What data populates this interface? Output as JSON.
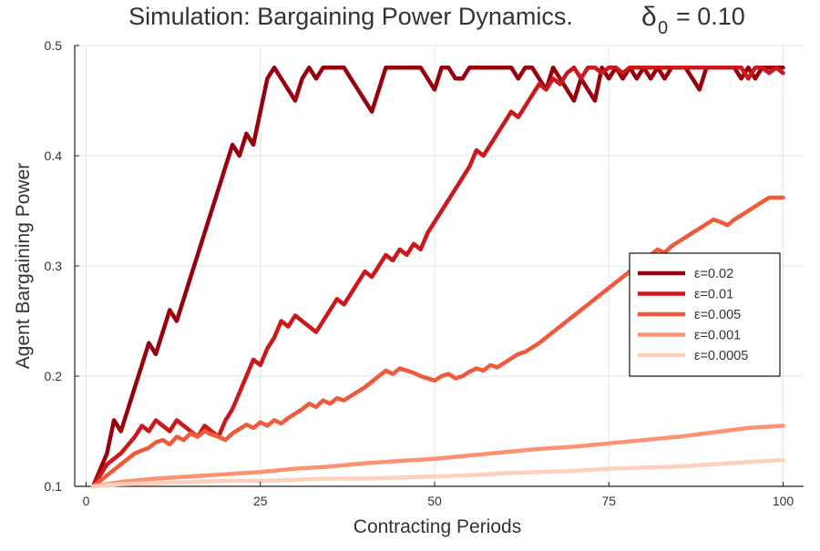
{
  "chart_data": {
    "type": "line",
    "title": "Simulation: Bargaining Power Dynamics.",
    "title_param": {
      "symbol": "δ",
      "subscript": "0",
      "value": "= 0.10"
    },
    "xlabel": "Contracting Periods",
    "ylabel": "Agent Bargaining Power",
    "xlim": [
      0,
      100
    ],
    "ylim": [
      0.1,
      0.5
    ],
    "xticks": [
      0,
      25,
      50,
      75,
      100
    ],
    "xtick_labels": [
      "0",
      "25",
      "50",
      "75",
      "100"
    ],
    "yticks": [
      0.1,
      0.2,
      0.3,
      0.4,
      0.5
    ],
    "ytick_labels": [
      "0.1",
      "0.2",
      "0.3",
      "0.4",
      "0.5"
    ],
    "grid": true,
    "legend_position": "right",
    "series": [
      {
        "name": "ε=0.02",
        "color": "#99000d",
        "x": [
          1,
          3,
          4,
          5,
          6,
          7,
          8,
          9,
          10,
          11,
          12,
          13,
          14,
          15,
          16,
          17,
          18,
          19,
          20,
          21,
          22,
          23,
          24,
          25,
          26,
          27,
          28,
          29,
          30,
          31,
          32,
          33,
          34,
          35,
          36,
          37,
          38,
          39,
          40,
          41,
          42,
          43,
          44,
          45,
          46,
          47,
          48,
          49,
          50,
          51,
          52,
          53,
          54,
          55,
          56,
          57,
          58,
          59,
          60,
          61,
          62,
          63,
          64,
          65,
          66,
          67,
          68,
          69,
          70,
          71,
          72,
          73,
          74,
          75,
          76,
          77,
          78,
          79,
          80,
          81,
          82,
          83,
          84,
          85,
          86,
          87,
          88,
          89,
          90,
          91,
          92,
          93,
          94,
          95,
          96,
          97,
          98,
          99,
          100
        ],
        "y": [
          0.1,
          0.13,
          0.16,
          0.15,
          0.17,
          0.19,
          0.21,
          0.23,
          0.22,
          0.24,
          0.26,
          0.25,
          0.27,
          0.29,
          0.31,
          0.33,
          0.35,
          0.37,
          0.39,
          0.41,
          0.4,
          0.42,
          0.41,
          0.44,
          0.47,
          0.48,
          0.47,
          0.46,
          0.45,
          0.47,
          0.48,
          0.47,
          0.48,
          0.48,
          0.48,
          0.48,
          0.47,
          0.46,
          0.45,
          0.44,
          0.46,
          0.48,
          0.48,
          0.48,
          0.48,
          0.48,
          0.48,
          0.47,
          0.46,
          0.48,
          0.48,
          0.47,
          0.47,
          0.48,
          0.48,
          0.48,
          0.48,
          0.48,
          0.48,
          0.48,
          0.47,
          0.48,
          0.48,
          0.47,
          0.46,
          0.48,
          0.47,
          0.46,
          0.45,
          0.47,
          0.46,
          0.45,
          0.48,
          0.47,
          0.48,
          0.47,
          0.48,
          0.47,
          0.48,
          0.47,
          0.48,
          0.47,
          0.48,
          0.48,
          0.48,
          0.47,
          0.46,
          0.48,
          0.48,
          0.48,
          0.48,
          0.48,
          0.47,
          0.48,
          0.47,
          0.48,
          0.48,
          0.48,
          0.48
        ]
      },
      {
        "name": "ε=0.01",
        "color": "#cb181d",
        "x": [
          1,
          3,
          5,
          7,
          8,
          9,
          10,
          11,
          12,
          13,
          14,
          15,
          16,
          17,
          18,
          19,
          20,
          21,
          22,
          23,
          24,
          25,
          26,
          27,
          28,
          29,
          30,
          31,
          32,
          33,
          34,
          35,
          36,
          37,
          38,
          39,
          40,
          41,
          42,
          43,
          44,
          45,
          46,
          47,
          48,
          49,
          50,
          51,
          52,
          53,
          54,
          55,
          56,
          57,
          58,
          59,
          60,
          61,
          62,
          63,
          64,
          65,
          66,
          67,
          68,
          69,
          70,
          71,
          72,
          73,
          74,
          75,
          76,
          77,
          78,
          79,
          80,
          81,
          82,
          83,
          84,
          85,
          86,
          87,
          88,
          89,
          90,
          91,
          92,
          93,
          94,
          95,
          96,
          97,
          98,
          99,
          100
        ],
        "y": [
          0.1,
          0.12,
          0.13,
          0.145,
          0.155,
          0.15,
          0.16,
          0.155,
          0.15,
          0.16,
          0.155,
          0.15,
          0.145,
          0.155,
          0.15,
          0.145,
          0.16,
          0.17,
          0.185,
          0.2,
          0.215,
          0.21,
          0.225,
          0.235,
          0.25,
          0.245,
          0.255,
          0.25,
          0.245,
          0.24,
          0.25,
          0.26,
          0.27,
          0.265,
          0.275,
          0.285,
          0.295,
          0.29,
          0.3,
          0.31,
          0.305,
          0.315,
          0.31,
          0.32,
          0.315,
          0.33,
          0.34,
          0.35,
          0.36,
          0.37,
          0.38,
          0.39,
          0.405,
          0.4,
          0.41,
          0.42,
          0.43,
          0.44,
          0.435,
          0.445,
          0.455,
          0.465,
          0.46,
          0.47,
          0.465,
          0.475,
          0.48,
          0.47,
          0.48,
          0.48,
          0.475,
          0.48,
          0.48,
          0.475,
          0.48,
          0.48,
          0.48,
          0.48,
          0.48,
          0.48,
          0.48,
          0.48,
          0.48,
          0.48,
          0.48,
          0.48,
          0.48,
          0.48,
          0.48,
          0.48,
          0.48,
          0.47,
          0.48,
          0.48,
          0.475,
          0.48,
          0.475
        ]
      },
      {
        "name": "ε=0.005",
        "color": "#ef5a3c",
        "x": [
          1,
          3,
          5,
          7,
          9,
          10,
          11,
          12,
          13,
          14,
          15,
          16,
          17,
          18,
          19,
          20,
          21,
          22,
          23,
          24,
          25,
          26,
          27,
          28,
          29,
          30,
          31,
          32,
          33,
          34,
          35,
          36,
          37,
          38,
          39,
          40,
          41,
          42,
          43,
          44,
          45,
          46,
          47,
          48,
          49,
          50,
          51,
          52,
          53,
          54,
          55,
          56,
          57,
          58,
          59,
          60,
          61,
          62,
          63,
          64,
          65,
          66,
          67,
          68,
          69,
          70,
          71,
          72,
          73,
          74,
          75,
          76,
          77,
          78,
          79,
          80,
          81,
          82,
          83,
          84,
          85,
          86,
          87,
          88,
          89,
          90,
          91,
          92,
          93,
          94,
          95,
          96,
          97,
          98,
          99,
          100
        ],
        "y": [
          0.1,
          0.11,
          0.12,
          0.13,
          0.135,
          0.14,
          0.142,
          0.138,
          0.145,
          0.142,
          0.148,
          0.145,
          0.15,
          0.147,
          0.145,
          0.142,
          0.148,
          0.152,
          0.156,
          0.153,
          0.158,
          0.155,
          0.16,
          0.157,
          0.162,
          0.166,
          0.17,
          0.175,
          0.172,
          0.178,
          0.175,
          0.18,
          0.178,
          0.182,
          0.186,
          0.19,
          0.195,
          0.2,
          0.205,
          0.202,
          0.207,
          0.205,
          0.203,
          0.2,
          0.198,
          0.196,
          0.2,
          0.202,
          0.198,
          0.2,
          0.204,
          0.207,
          0.205,
          0.21,
          0.208,
          0.212,
          0.216,
          0.22,
          0.222,
          0.226,
          0.23,
          0.235,
          0.24,
          0.245,
          0.25,
          0.255,
          0.26,
          0.265,
          0.27,
          0.275,
          0.28,
          0.285,
          0.29,
          0.295,
          0.3,
          0.305,
          0.31,
          0.315,
          0.312,
          0.318,
          0.322,
          0.326,
          0.33,
          0.334,
          0.338,
          0.342,
          0.34,
          0.337,
          0.342,
          0.346,
          0.35,
          0.354,
          0.358,
          0.362,
          0.362,
          0.362
        ]
      },
      {
        "name": "ε=0.001",
        "color": "#fc9272",
        "x": [
          1,
          5,
          10,
          15,
          20,
          25,
          30,
          35,
          40,
          45,
          50,
          55,
          60,
          65,
          70,
          75,
          80,
          85,
          90,
          95,
          100
        ],
        "y": [
          0.1,
          0.104,
          0.107,
          0.109,
          0.111,
          0.113,
          0.116,
          0.118,
          0.121,
          0.123,
          0.125,
          0.128,
          0.131,
          0.134,
          0.136,
          0.139,
          0.142,
          0.145,
          0.149,
          0.153,
          0.155
        ]
      },
      {
        "name": "ε=0.0005",
        "color": "#fdd0bc",
        "x": [
          1,
          5,
          10,
          15,
          20,
          25,
          30,
          35,
          40,
          45,
          50,
          55,
          60,
          65,
          70,
          75,
          80,
          85,
          90,
          95,
          100
        ],
        "y": [
          0.1,
          0.102,
          0.103,
          0.104,
          0.105,
          0.105,
          0.106,
          0.107,
          0.107,
          0.108,
          0.109,
          0.11,
          0.112,
          0.113,
          0.114,
          0.116,
          0.117,
          0.118,
          0.12,
          0.122,
          0.124
        ]
      }
    ]
  }
}
